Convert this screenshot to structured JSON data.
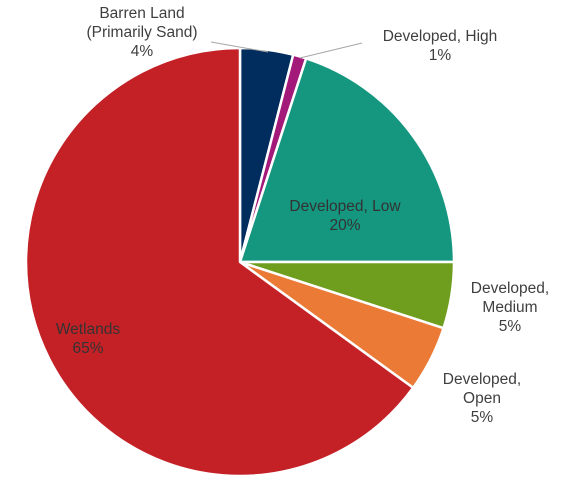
{
  "chart_data": {
    "type": "pie",
    "title": "",
    "slices": [
      {
        "key": "barren",
        "label_lines": [
          "Barren Land",
          "(Primarily Sand)"
        ],
        "percent_label": "4%",
        "value": 4,
        "color": "#002d5e"
      },
      {
        "key": "dev_high",
        "label_lines": [
          "Developed, High"
        ],
        "percent_label": "1%",
        "value": 1,
        "color": "#a3197a"
      },
      {
        "key": "dev_low",
        "label_lines": [
          "Developed, Low"
        ],
        "percent_label": "20%",
        "value": 20,
        "color": "#14967f"
      },
      {
        "key": "dev_medium",
        "label_lines": [
          "Developed,",
          "Medium"
        ],
        "percent_label": "5%",
        "value": 5,
        "color": "#6f9e1e"
      },
      {
        "key": "dev_open",
        "label_lines": [
          "Developed,",
          "Open"
        ],
        "percent_label": "5%",
        "value": 5,
        "color": "#ea7a36"
      },
      {
        "key": "wetlands",
        "label_lines": [
          "Wetlands"
        ],
        "percent_label": "65%",
        "value": 65,
        "color": "#c42126"
      }
    ],
    "legend": "none",
    "data_labels": "category name and percentage"
  }
}
